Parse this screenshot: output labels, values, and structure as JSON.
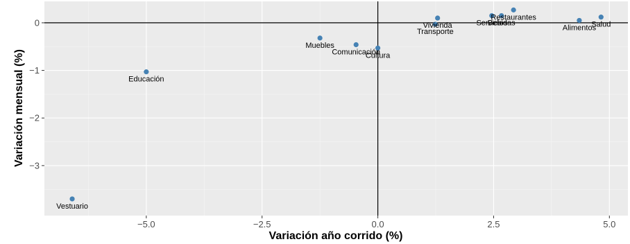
{
  "colors": {
    "panel": "#ebebeb",
    "grid_major": "#ffffff",
    "grid_minor": "#f5f5f5",
    "point": "#4682b4",
    "zero_line": "#000000",
    "tick_text": "#4d4d4d"
  },
  "chart_data": {
    "type": "scatter",
    "title": "",
    "xlabel": "Variación año corrido (%)",
    "ylabel": "Variación mensual (%)",
    "xlim": [
      -7.2,
      5.4
    ],
    "ylim": [
      -4.05,
      0.45
    ],
    "x_ticks": [
      -5.0,
      -2.5,
      0.0,
      2.5,
      5.0
    ],
    "x_tick_labels": [
      "−5.0",
      "−2.5",
      "0.0",
      "2.5",
      "5.0"
    ],
    "y_ticks": [
      -3,
      -2,
      -1,
      0
    ],
    "y_tick_labels": [
      "−3",
      "−2",
      "−1",
      "0"
    ],
    "grid": true,
    "reference_lines": {
      "x": 0,
      "y": 0
    },
    "points": [
      {
        "label": "Vestuario",
        "x": -6.6,
        "y": -3.7
      },
      {
        "label": "Educación",
        "x": -5.0,
        "y": -1.03
      },
      {
        "label": "Muebles",
        "x": -1.25,
        "y": -0.32
      },
      {
        "label": "Comunicación",
        "x": -0.47,
        "y": -0.46
      },
      {
        "label": "Cultura",
        "x": 0.0,
        "y": -0.53
      },
      {
        "label": "Vivienda",
        "x": 1.29,
        "y": 0.1
      },
      {
        "label": "Transporte",
        "x": 1.24,
        "y": -0.03
      },
      {
        "label": "Servicios",
        "x": 2.46,
        "y": 0.15
      },
      {
        "label": "Bebidas",
        "x": 2.67,
        "y": 0.15
      },
      {
        "label": "Restaurantes",
        "x": 2.93,
        "y": 0.27
      },
      {
        "label": "Alimentos",
        "x": 4.35,
        "y": 0.05
      },
      {
        "label": "Salud",
        "x": 4.82,
        "y": 0.12
      }
    ]
  }
}
